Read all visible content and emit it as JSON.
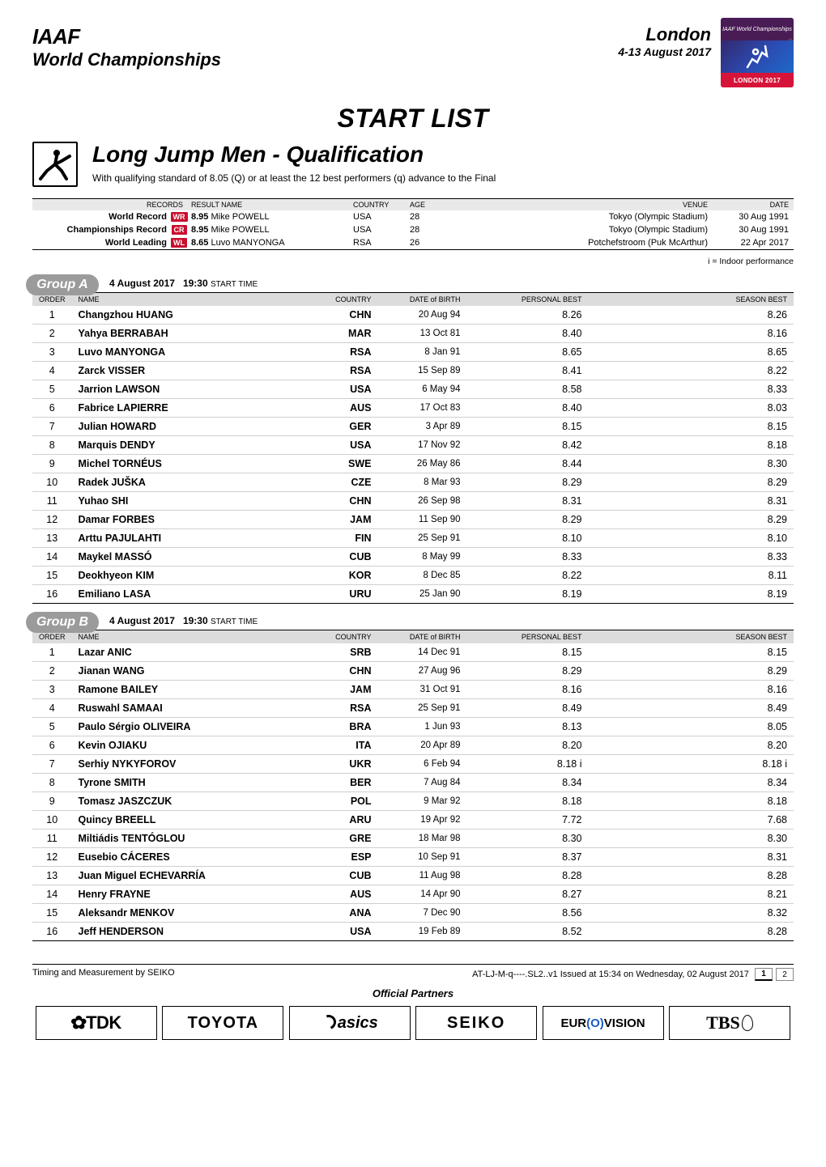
{
  "header": {
    "org": "IAAF",
    "championship": "World Championships",
    "city": "London",
    "dates": "4-13 August 2017",
    "logo_top": "IAAF World Championships",
    "logo_bot": "LONDON 2017"
  },
  "section_title": "START LIST",
  "event": {
    "title": "Long Jump Men - Qualification",
    "subtitle": "With qualifying standard of 8.05 (Q) or at least the 12 best performers (q) advance to the Final"
  },
  "records": {
    "headers": [
      "RECORDS",
      "RESULT  NAME",
      "COUNTRY",
      "AGE",
      "VENUE",
      "DATE"
    ],
    "rows": [
      {
        "label": "World Record",
        "tag": "WR",
        "result": "8.95",
        "name": "Mike POWELL",
        "country": "USA",
        "age": "28",
        "venue": "Tokyo (Olympic Stadium)",
        "date": "30 Aug 1991"
      },
      {
        "label": "Championships Record",
        "tag": "CR",
        "result": "8.95",
        "name": "Mike POWELL",
        "country": "USA",
        "age": "28",
        "venue": "Tokyo (Olympic Stadium)",
        "date": "30 Aug 1991"
      },
      {
        "label": "World Leading",
        "tag": "WL",
        "result": "8.65",
        "name": "Luvo MANYONGA",
        "country": "RSA",
        "age": "26",
        "venue": "Potchefstroom (Puk McArthur)",
        "date": "22 Apr 2017"
      }
    ]
  },
  "indoor_note": "i = Indoor performance",
  "group_session": {
    "date": "4 August  2017",
    "time": "19:30",
    "time_label": "START TIME"
  },
  "group_headers": [
    "ORDER",
    "NAME",
    "COUNTRY",
    "DATE of BIRTH",
    "PERSONAL BEST",
    "SEASON BEST"
  ],
  "groups": [
    {
      "label": "Group A",
      "athletes": [
        {
          "o": 1,
          "n": "Changzhou HUANG",
          "c": "CHN",
          "d": "20 Aug 94",
          "p": "8.26",
          "s": "8.26"
        },
        {
          "o": 2,
          "n": "Yahya BERRABAH",
          "c": "MAR",
          "d": "13 Oct 81",
          "p": "8.40",
          "s": "8.16"
        },
        {
          "o": 3,
          "n": "Luvo MANYONGA",
          "c": "RSA",
          "d": "8 Jan 91",
          "p": "8.65",
          "s": "8.65"
        },
        {
          "o": 4,
          "n": "Zarck VISSER",
          "c": "RSA",
          "d": "15 Sep 89",
          "p": "8.41",
          "s": "8.22"
        },
        {
          "o": 5,
          "n": "Jarrion LAWSON",
          "c": "USA",
          "d": "6 May 94",
          "p": "8.58",
          "s": "8.33"
        },
        {
          "o": 6,
          "n": "Fabrice LAPIERRE",
          "c": "AUS",
          "d": "17 Oct 83",
          "p": "8.40",
          "s": "8.03"
        },
        {
          "o": 7,
          "n": "Julian HOWARD",
          "c": "GER",
          "d": "3 Apr 89",
          "p": "8.15",
          "s": "8.15"
        },
        {
          "o": 8,
          "n": "Marquis DENDY",
          "c": "USA",
          "d": "17 Nov 92",
          "p": "8.42",
          "s": "8.18"
        },
        {
          "o": 9,
          "n": "Michel TORNÉUS",
          "c": "SWE",
          "d": "26 May 86",
          "p": "8.44",
          "s": "8.30"
        },
        {
          "o": 10,
          "n": "Radek JUŠKA",
          "c": "CZE",
          "d": "8 Mar 93",
          "p": "8.29",
          "s": "8.29"
        },
        {
          "o": 11,
          "n": "Yuhao SHI",
          "c": "CHN",
          "d": "26 Sep 98",
          "p": "8.31",
          "s": "8.31"
        },
        {
          "o": 12,
          "n": "Damar FORBES",
          "c": "JAM",
          "d": "11 Sep 90",
          "p": "8.29",
          "s": "8.29"
        },
        {
          "o": 13,
          "n": "Arttu PAJULAHTI",
          "c": "FIN",
          "d": "25 Sep 91",
          "p": "8.10",
          "s": "8.10"
        },
        {
          "o": 14,
          "n": "Maykel MASSÓ",
          "c": "CUB",
          "d": "8 May 99",
          "p": "8.33",
          "s": "8.33"
        },
        {
          "o": 15,
          "n": "Deokhyeon KIM",
          "c": "KOR",
          "d": "8 Dec 85",
          "p": "8.22",
          "s": "8.11"
        },
        {
          "o": 16,
          "n": "Emiliano LASA",
          "c": "URU",
          "d": "25 Jan 90",
          "p": "8.19",
          "s": "8.19"
        }
      ]
    },
    {
      "label": "Group B",
      "athletes": [
        {
          "o": 1,
          "n": "Lazar ANIC",
          "c": "SRB",
          "d": "14 Dec 91",
          "p": "8.15",
          "s": "8.15"
        },
        {
          "o": 2,
          "n": "Jianan WANG",
          "c": "CHN",
          "d": "27 Aug 96",
          "p": "8.29",
          "s": "8.29"
        },
        {
          "o": 3,
          "n": "Ramone BAILEY",
          "c": "JAM",
          "d": "31 Oct 91",
          "p": "8.16",
          "s": "8.16"
        },
        {
          "o": 4,
          "n": "Ruswahl SAMAAI",
          "c": "RSA",
          "d": "25 Sep 91",
          "p": "8.49",
          "s": "8.49"
        },
        {
          "o": 5,
          "n": "Paulo Sérgio OLIVEIRA",
          "c": "BRA",
          "d": "1 Jun 93",
          "p": "8.13",
          "s": "8.05"
        },
        {
          "o": 6,
          "n": "Kevin OJIAKU",
          "c": "ITA",
          "d": "20 Apr 89",
          "p": "8.20",
          "s": "8.20"
        },
        {
          "o": 7,
          "n": "Serhiy NYKYFOROV",
          "c": "UKR",
          "d": "6 Feb 94",
          "p": "8.18 i",
          "s": "8.18 i"
        },
        {
          "o": 8,
          "n": "Tyrone SMITH",
          "c": "BER",
          "d": "7 Aug 84",
          "p": "8.34",
          "s": "8.34"
        },
        {
          "o": 9,
          "n": "Tomasz JASZCZUK",
          "c": "POL",
          "d": "9 Mar 92",
          "p": "8.18",
          "s": "8.18"
        },
        {
          "o": 10,
          "n": "Quincy BREELL",
          "c": "ARU",
          "d": "19 Apr 92",
          "p": "7.72",
          "s": "7.68"
        },
        {
          "o": 11,
          "n": "Miltiádis TENTÓGLOU",
          "c": "GRE",
          "d": "18 Mar 98",
          "p": "8.30",
          "s": "8.30"
        },
        {
          "o": 12,
          "n": "Eusebio CÁCERES",
          "c": "ESP",
          "d": "10 Sep 91",
          "p": "8.37",
          "s": "8.31"
        },
        {
          "o": 13,
          "n": "Juan Miguel ECHEVARRÍA",
          "c": "CUB",
          "d": "11 Aug 98",
          "p": "8.28",
          "s": "8.28"
        },
        {
          "o": 14,
          "n": "Henry FRAYNE",
          "c": "AUS",
          "d": "14 Apr 90",
          "p": "8.27",
          "s": "8.21"
        },
        {
          "o": 15,
          "n": "Aleksandr MENKOV",
          "c": "ANA",
          "d": "7 Dec 90",
          "p": "8.56",
          "s": "8.32"
        },
        {
          "o": 16,
          "n": "Jeff HENDERSON",
          "c": "USA",
          "d": "19 Feb 89",
          "p": "8.52",
          "s": "8.28"
        }
      ]
    }
  ],
  "footer": {
    "timing": "Timing and Measurement by SEIKO",
    "docid": "AT-LJ-M-q----.SL2..v1 Issued at 15:34 on Wednesday, 02 August  2017",
    "page": "1",
    "pages": "2",
    "partners_title": "Official Partners"
  },
  "partners": [
    "TDK",
    "TOYOTA",
    "asics",
    "SEIKO",
    "EUR(O)VISION",
    "TBS"
  ],
  "colors": {
    "tag_bg": "#c8102e",
    "tab_bg": "#9b9b9b",
    "th_bg": "#dcdcdc",
    "rule": "#000",
    "row_rule": "#cfcfcf"
  }
}
